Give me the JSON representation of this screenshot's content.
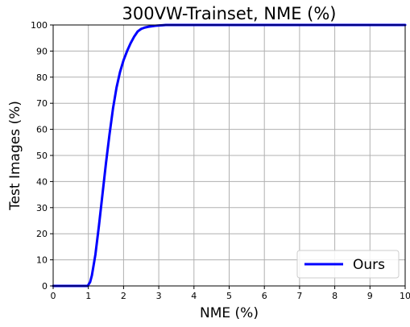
{
  "chart_data": {
    "type": "line",
    "title": "300VW-Trainset, NME (%)",
    "xlabel": "NME (%)",
    "ylabel": "Test Images (%)",
    "xlim": [
      0,
      10
    ],
    "ylim": [
      0,
      100
    ],
    "xticks": [
      0,
      1,
      2,
      3,
      4,
      5,
      6,
      7,
      8,
      9,
      10
    ],
    "yticks": [
      0,
      10,
      20,
      30,
      40,
      50,
      60,
      70,
      80,
      90,
      100
    ],
    "grid": true,
    "legend_position": "bottom-right",
    "series": [
      {
        "name": "Ours",
        "color": "#0000ff",
        "x": [
          0,
          0.98,
          1.05,
          1.1,
          1.2,
          1.3,
          1.4,
          1.5,
          1.6,
          1.7,
          1.8,
          1.9,
          2.0,
          2.1,
          2.2,
          2.3,
          2.4,
          2.5,
          2.6,
          2.7,
          2.8,
          2.9,
          3.0,
          3.1,
          3.2,
          3.4,
          3.7,
          4.0,
          4.5,
          5.0,
          6.0,
          7.0,
          8.0,
          9.0,
          10.0
        ],
        "y": [
          0,
          0,
          1.5,
          4,
          12,
          23,
          35,
          47,
          58,
          68,
          76,
          82,
          86.5,
          90,
          93,
          95.5,
          97.5,
          98.5,
          99,
          99.3,
          99.5,
          99.7,
          99.8,
          99.9,
          100,
          100,
          100,
          100,
          100,
          100,
          100,
          100,
          100,
          100,
          100
        ]
      }
    ]
  }
}
